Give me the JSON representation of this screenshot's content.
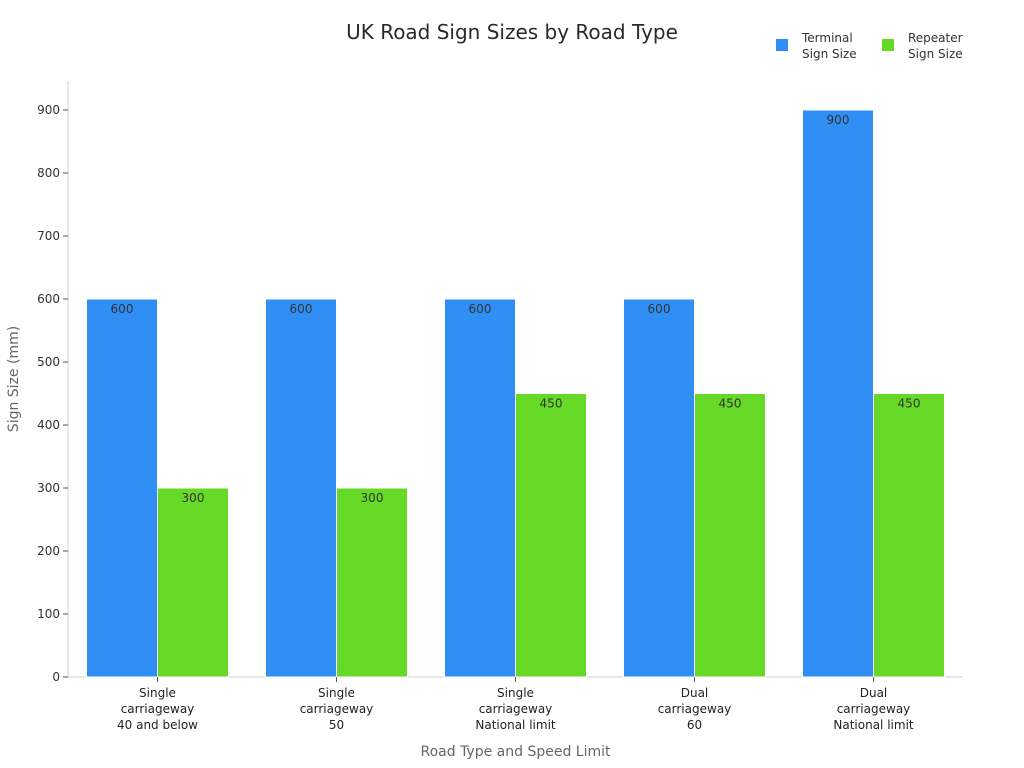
{
  "chart_data": {
    "type": "bar",
    "title": "UK Road Sign Sizes by Road Type",
    "xlabel": "Road Type and Speed Limit",
    "ylabel": "Sign Size (mm)",
    "ylim": [
      0,
      950
    ],
    "yticks": [
      0,
      100,
      200,
      300,
      400,
      500,
      600,
      700,
      800,
      900
    ],
    "grid": false,
    "legend_position": "top-right",
    "categories": [
      [
        "Single",
        "carriageway",
        "40 and below"
      ],
      [
        "Single",
        "carriageway",
        "50"
      ],
      [
        "Single",
        "carriageway",
        "National limit"
      ],
      [
        "Dual",
        "carriageway",
        "60"
      ],
      [
        "Dual",
        "carriageway",
        "National limit"
      ]
    ],
    "series": [
      {
        "name": "Terminal Sign Size",
        "color": "#2f8ff5",
        "values": [
          600,
          600,
          600,
          600,
          900
        ]
      },
      {
        "name": "Repeater Sign Size",
        "color": "#66d926",
        "values": [
          300,
          300,
          450,
          450,
          450
        ]
      }
    ]
  },
  "legend": [
    {
      "line1": "Terminal",
      "line2": "Sign Size",
      "color": "#2f8ff5"
    },
    {
      "line1": "Repeater",
      "line2": "Sign Size",
      "color": "#66d926"
    }
  ]
}
